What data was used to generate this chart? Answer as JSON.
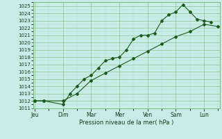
{
  "xlabel": "Pression niveau de la mer( hPa )",
  "bg_color": "#c8ece8",
  "line_color": "#1a5c1a",
  "grid_major_color": "#7ab87a",
  "grid_minor_color": "#a8d8a8",
  "ylim": [
    1011,
    1025.5
  ],
  "yticks": [
    1011,
    1012,
    1013,
    1014,
    1015,
    1016,
    1017,
    1018,
    1019,
    1020,
    1021,
    1022,
    1023,
    1024,
    1025
  ],
  "x_labels": [
    "Jeu",
    "Dim",
    "Mar",
    "Mer",
    "Ven",
    "Sam",
    "Lun"
  ],
  "x_tick_pos": [
    0,
    1,
    2,
    3,
    4,
    5,
    6
  ],
  "xlim": [
    -0.05,
    6.55
  ],
  "line1_x": [
    0,
    0.33,
    1.0,
    1.25,
    1.5,
    1.75,
    2.0,
    2.25,
    2.5,
    2.75,
    3.0,
    3.25,
    3.5,
    3.75,
    4.0,
    4.25,
    4.5,
    4.75,
    5.0,
    5.25,
    5.5,
    5.75,
    6.0,
    6.25
  ],
  "line1_y": [
    1012.0,
    1012.0,
    1011.5,
    1013.0,
    1014.0,
    1015.0,
    1015.5,
    1016.5,
    1017.5,
    1017.8,
    1018.0,
    1019.0,
    1020.5,
    1021.0,
    1021.0,
    1021.3,
    1023.0,
    1023.8,
    1024.2,
    1025.2,
    1024.2,
    1023.2,
    1023.0,
    1022.8
  ],
  "line2_x": [
    0,
    0.33,
    1.0,
    1.5,
    2.0,
    2.5,
    3.0,
    3.5,
    4.0,
    4.5,
    5.0,
    5.5,
    6.0,
    6.5
  ],
  "line2_y": [
    1012.0,
    1012.0,
    1012.0,
    1013.0,
    1014.8,
    1015.8,
    1016.8,
    1017.8,
    1018.8,
    1019.8,
    1020.8,
    1021.5,
    1022.5,
    1022.2
  ],
  "marker": "D",
  "markersize": 2.0,
  "linewidth": 0.8,
  "ytick_fontsize": 5.0,
  "xtick_fontsize": 5.5,
  "xlabel_fontsize": 6.0
}
